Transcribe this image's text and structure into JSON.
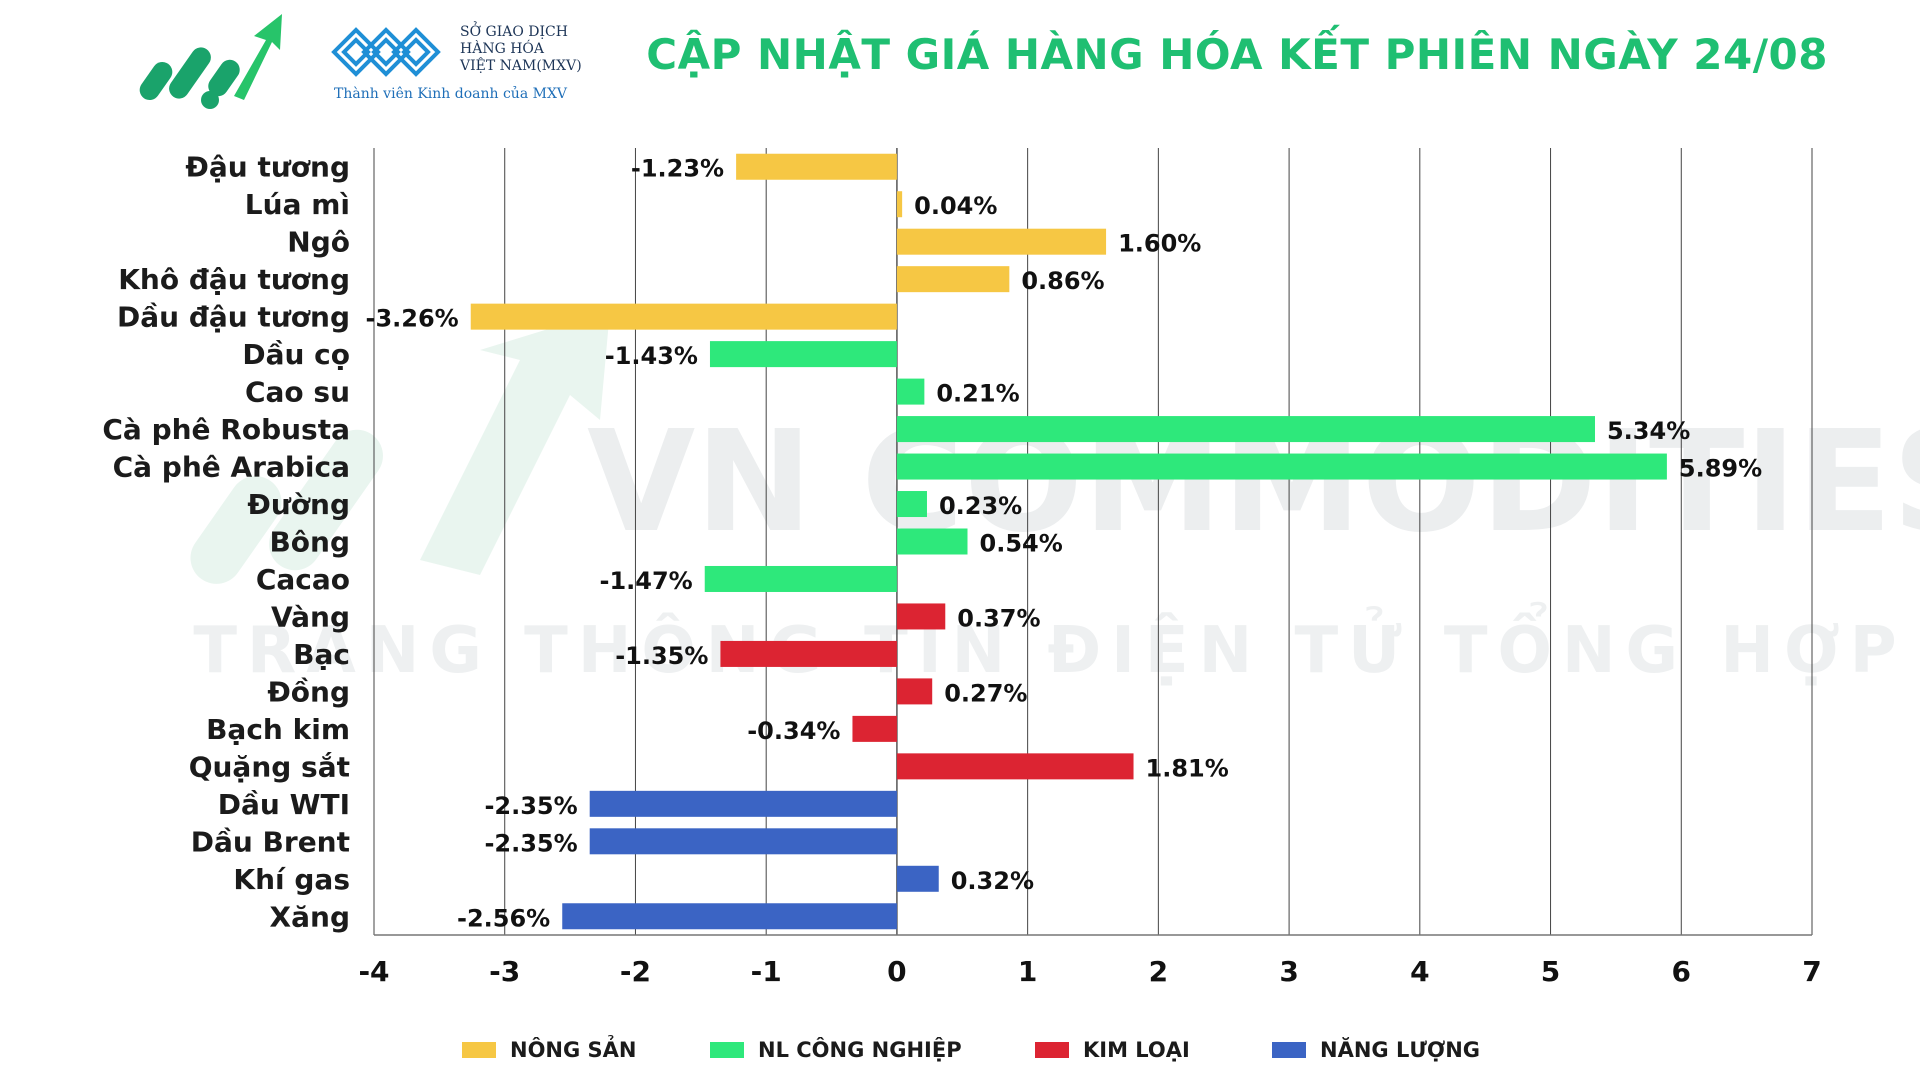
{
  "header": {
    "title": "CẬP NHẬT GIÁ HÀNG HÓA KẾT PHIÊN NGÀY 24/08",
    "mxv_line1": "SỞ GIAO DỊCH",
    "mxv_line2": "HÀNG HÓA",
    "mxv_line3": "VIỆT NAM(MXV)",
    "mxv_tagline": "Thành viên Kinh doanh của MXV",
    "logo_left_icon": "growth-arrow-logo",
    "logo_mxv_icon": "mxv-diamond-logo"
  },
  "watermark": {
    "line1": "VN COMMODITIES",
    "line2": "TRANG THÔNG TIN ĐIỆN TỬ TỔNG HỢP"
  },
  "chart_data": {
    "type": "bar",
    "orientation": "horizontal",
    "categories": [
      "Đậu tương",
      "Lúa mì",
      "Ngô",
      "Khô đậu tương",
      "Dầu đậu tương",
      "Dầu cọ",
      "Cao su",
      "Cà phê Robusta",
      "Cà phê Arabica",
      "Đường",
      "Bông",
      "Cacao",
      "Vàng",
      "Bạc",
      "Đồng",
      "Bạch kim",
      "Quặng sắt",
      "Dầu WTI",
      "Dầu Brent",
      "Khí gas",
      "Xăng"
    ],
    "values": [
      -1.23,
      0.04,
      1.6,
      0.86,
      -3.26,
      -1.43,
      0.21,
      5.34,
      5.89,
      0.23,
      0.54,
      -1.47,
      0.37,
      -1.35,
      0.27,
      -0.34,
      1.81,
      -2.35,
      -2.35,
      0.32,
      -2.56
    ],
    "value_labels": [
      "-1.23%",
      "0.04%",
      "1.60%",
      "0.86%",
      "-3.26%",
      "-1.43%",
      "0.21%",
      "5.34%",
      "5.89%",
      "0.23%",
      "0.54%",
      "-1.47%",
      "0.37%",
      "-1.35%",
      "0.27%",
      "-0.34%",
      "1.81%",
      "-2.35%",
      "-2.35%",
      "0.32%",
      "-2.56%"
    ],
    "groups": [
      "nong_san",
      "nong_san",
      "nong_san",
      "nong_san",
      "nong_san",
      "nl_cong_nghiep",
      "nl_cong_nghiep",
      "nl_cong_nghiep",
      "nl_cong_nghiep",
      "nl_cong_nghiep",
      "nl_cong_nghiep",
      "nl_cong_nghiep",
      "kim_loai",
      "kim_loai",
      "kim_loai",
      "kim_loai",
      "kim_loai",
      "nang_luong",
      "nang_luong",
      "nang_luong",
      "nang_luong"
    ],
    "xlim": [
      -4,
      7
    ],
    "xticks": [
      -4,
      -3,
      -2,
      -1,
      0,
      1,
      2,
      3,
      4,
      5,
      6,
      7
    ],
    "grid": true,
    "legend_position": "bottom",
    "legend": [
      {
        "key": "nong_san",
        "label": "NÔNG SẢN",
        "color": "#f6c744"
      },
      {
        "key": "nl_cong_nghiep",
        "label": "NL CÔNG NGHIỆP",
        "color": "#2ee87b"
      },
      {
        "key": "kim_loai",
        "label": "KIM LOẠI",
        "color": "#dc2432"
      },
      {
        "key": "nang_luong",
        "label": "NĂNG LƯỢNG",
        "color": "#3b64c4"
      }
    ]
  },
  "colors": {
    "title": "#1fbf72",
    "grid": "#444444",
    "watermark": "#e9ecef"
  }
}
